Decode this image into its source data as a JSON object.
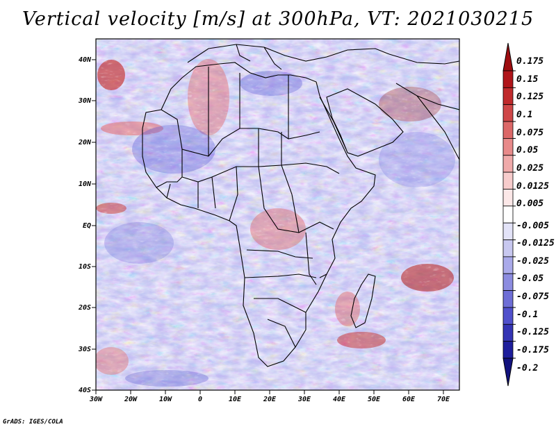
{
  "title": "Vertical velocity [m/s] at 300hPa, VT: 2021030215",
  "footer": "GrADS: IGES/COLA",
  "axes": {
    "lat_labels": [
      "40N",
      "30N",
      "20N",
      "10N",
      "EQ",
      "10S",
      "20S",
      "30S",
      "40S"
    ],
    "lon_labels": [
      "30W",
      "20W",
      "10W",
      "0",
      "10E",
      "20E",
      "30E",
      "40E",
      "50E",
      "60E",
      "70E"
    ]
  },
  "colorbar": {
    "levels": [
      "0.175",
      "0.15",
      "0.125",
      "0.1",
      "0.075",
      "0.05",
      "0.025",
      "0.0125",
      "0.005",
      "-0.005",
      "-0.0125",
      "-0.025",
      "-0.05",
      "-0.075",
      "-0.1",
      "-0.125",
      "-0.175",
      "-0.2"
    ],
    "colors": [
      "#9e0d10",
      "#b0151a",
      "#c02a2c",
      "#cf4748",
      "#dc6868",
      "#e88a8a",
      "#f0aaaa",
      "#f7cccc",
      "#fce8e8",
      "#ffffff",
      "#e3e3f8",
      "#c8c8f0",
      "#aaaaea",
      "#8c8ce0",
      "#6e6ed6",
      "#5050cc",
      "#3434b4",
      "#1e1e9c",
      "#12127e"
    ]
  },
  "colors": {
    "positive": "#e06060",
    "negative": "#6060e0",
    "neutral": "#ffffff",
    "coastline": "#000000"
  }
}
